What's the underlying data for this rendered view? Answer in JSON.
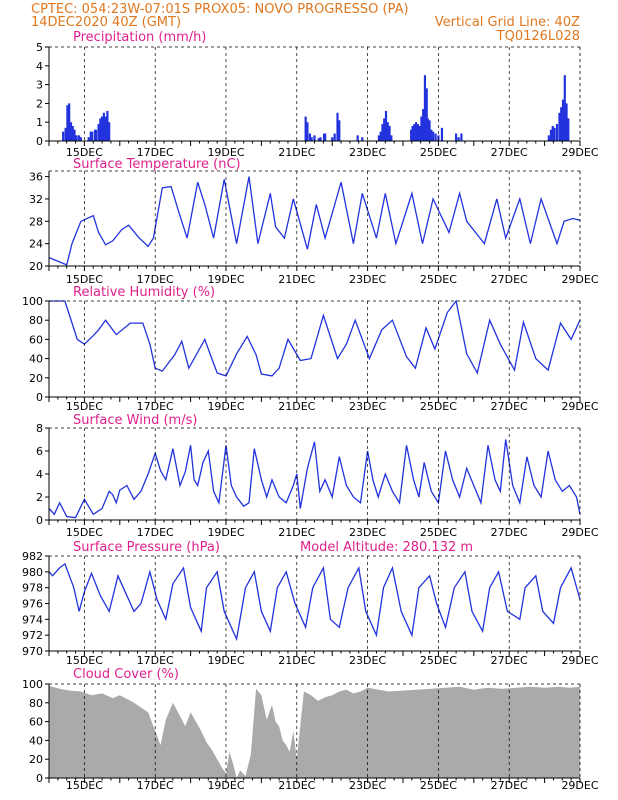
{
  "header": {
    "line1_left": "CPTEC:   054:23W-07:01S    PROX05: NOVO PROGRESSO (PA)",
    "line2_left": "14DEC2020 40Z (GMT)",
    "line2_right": "Vertical Grid Line: 40Z",
    "line3_right": "TQ0126L028",
    "color": "#e07820"
  },
  "colors": {
    "title": "#e0208c",
    "series": "#2233dd",
    "cloud": "#aaaaaa",
    "grid": "#000000"
  },
  "x_axis": {
    "start_day": 14,
    "end_day": 29,
    "labels": [
      "15DEC",
      "17DEC",
      "19DEC",
      "21DEC",
      "23DEC",
      "25DEC",
      "27DEC",
      "29DEC"
    ],
    "label_days": [
      15,
      17,
      19,
      21,
      23,
      25,
      27,
      29
    ]
  },
  "chart_data": [
    {
      "id": "precip",
      "type": "bar",
      "title": "Precipitation (mm/h)",
      "ylim": [
        0,
        5
      ],
      "yticks": [
        0,
        1,
        2,
        3,
        4,
        5
      ],
      "x": [
        14.4,
        14.47,
        14.52,
        14.57,
        14.62,
        14.67,
        14.72,
        14.78,
        14.85,
        14.9,
        15.12,
        15.18,
        15.22,
        15.3,
        15.33,
        15.4,
        15.45,
        15.5,
        15.55,
        15.6,
        15.65,
        15.7,
        21.25,
        21.3,
        21.37,
        21.42,
        21.5,
        21.62,
        21.67,
        21.77,
        21.8,
        22.0,
        22.07,
        22.15,
        22.2,
        22.72,
        22.85,
        23.32,
        23.37,
        23.42,
        23.47,
        23.52,
        23.57,
        23.62,
        23.67,
        24.23,
        24.27,
        24.32,
        24.37,
        24.42,
        24.47,
        24.52,
        24.57,
        24.62,
        24.67,
        24.7,
        24.75,
        24.8,
        24.85,
        24.92,
        25.0,
        25.1,
        25.5,
        25.57,
        25.65,
        28.12,
        28.18,
        28.23,
        28.28,
        28.35,
        28.42,
        28.47,
        28.52,
        28.57,
        28.62,
        28.67
      ],
      "values": [
        0.5,
        0.7,
        1.9,
        2.0,
        1.0,
        0.8,
        0.6,
        0.3,
        0.3,
        0.2,
        0.2,
        0.5,
        0.5,
        0.6,
        0.6,
        0.9,
        1.2,
        1.3,
        1.5,
        1.3,
        1.6,
        1.0,
        1.3,
        1.0,
        0.4,
        0.2,
        0.3,
        0.15,
        0.2,
        0.4,
        0.4,
        0.2,
        0.4,
        1.5,
        1.1,
        0.3,
        0.2,
        0.3,
        0.5,
        0.9,
        1.2,
        1.6,
        1.0,
        0.8,
        0.3,
        0.6,
        0.8,
        0.9,
        1.0,
        0.9,
        0.8,
        1.3,
        1.7,
        3.5,
        2.8,
        1.2,
        1.1,
        0.6,
        0.5,
        0.4,
        0.3,
        0.7,
        0.4,
        0.2,
        0.4,
        0.3,
        0.6,
        0.8,
        0.7,
        0.9,
        1.5,
        1.8,
        2.2,
        3.5,
        2.0,
        1.2
      ]
    },
    {
      "id": "temp",
      "type": "line",
      "title": "Surface Temperature (nC)",
      "ylim": [
        20,
        37
      ],
      "yticks": [
        20,
        24,
        28,
        32,
        36
      ],
      "x": [
        14.0,
        14.5,
        14.65,
        14.9,
        15.25,
        15.4,
        15.6,
        15.8,
        16.05,
        16.25,
        16.55,
        16.8,
        16.95,
        17.2,
        17.45,
        17.65,
        17.9,
        18.2,
        18.4,
        18.65,
        18.95,
        19.3,
        19.65,
        19.9,
        20.25,
        20.4,
        20.65,
        20.9,
        21.3,
        21.55,
        21.8,
        22.25,
        22.6,
        22.85,
        23.25,
        23.5,
        23.8,
        24.25,
        24.55,
        24.85,
        25.3,
        25.6,
        25.8,
        26.3,
        26.65,
        26.9,
        27.3,
        27.6,
        27.9,
        28.35,
        28.55,
        28.8,
        29.0
      ],
      "values": [
        21.5,
        20.2,
        24.0,
        28.0,
        29.0,
        26.0,
        23.8,
        24.5,
        26.5,
        27.3,
        25.0,
        23.5,
        25.0,
        34.0,
        34.2,
        30.0,
        25.0,
        35.0,
        31.0,
        25.0,
        35.5,
        24.0,
        36.0,
        24.0,
        33.0,
        27.0,
        25.0,
        32.0,
        23.0,
        31.0,
        25.0,
        35.0,
        24.0,
        33.0,
        25.0,
        33.0,
        24.0,
        33.0,
        24.0,
        32.0,
        26.0,
        33.0,
        28.0,
        24.0,
        32.0,
        25.0,
        32.0,
        24.0,
        32.0,
        24.0,
        28.0,
        28.5,
        28.2
      ]
    },
    {
      "id": "rh",
      "type": "line",
      "title": "Relative Humidity (%)",
      "ylim": [
        0,
        100
      ],
      "yticks": [
        0,
        20,
        40,
        60,
        80,
        100
      ],
      "x": [
        14.0,
        14.45,
        14.8,
        15.0,
        15.25,
        15.4,
        15.6,
        15.9,
        16.3,
        16.65,
        16.85,
        17.0,
        17.2,
        17.55,
        17.75,
        17.95,
        18.4,
        18.6,
        18.75,
        19.0,
        19.3,
        19.6,
        19.85,
        20.0,
        20.3,
        20.5,
        20.75,
        21.1,
        21.4,
        21.75,
        22.15,
        22.4,
        22.65,
        23.05,
        23.4,
        23.7,
        24.1,
        24.35,
        24.65,
        24.9,
        25.25,
        25.5,
        25.8,
        26.1,
        26.45,
        26.75,
        27.15,
        27.4,
        27.75,
        28.1,
        28.45,
        28.75,
        29.0
      ],
      "values": [
        100,
        100,
        60,
        55,
        64,
        70,
        80,
        65,
        77,
        77,
        55,
        30,
        27,
        44,
        58,
        30,
        60,
        40,
        25,
        22,
        45,
        63,
        44,
        24,
        22,
        30,
        60,
        38,
        40,
        85,
        40,
        55,
        80,
        40,
        70,
        80,
        42,
        30,
        72,
        50,
        88,
        100,
        45,
        25,
        80,
        55,
        28,
        78,
        40,
        28,
        77,
        60,
        80
      ]
    },
    {
      "id": "wind",
      "type": "line",
      "title": "Surface Wind (m/s)",
      "ylim": [
        0,
        8
      ],
      "yticks": [
        0,
        2,
        4,
        6,
        8
      ],
      "x": [
        14.0,
        14.15,
        14.3,
        14.5,
        14.75,
        15.0,
        15.25,
        15.5,
        15.7,
        15.8,
        15.9,
        16.0,
        16.2,
        16.4,
        16.6,
        16.8,
        17.0,
        17.15,
        17.3,
        17.5,
        17.7,
        17.85,
        18.0,
        18.1,
        18.2,
        18.35,
        18.5,
        18.65,
        18.8,
        19.0,
        19.15,
        19.3,
        19.5,
        19.65,
        19.8,
        20.0,
        20.15,
        20.3,
        20.5,
        20.7,
        20.9,
        21.0,
        21.1,
        21.3,
        21.5,
        21.65,
        21.8,
        22.0,
        22.2,
        22.4,
        22.6,
        22.8,
        23.0,
        23.15,
        23.3,
        23.5,
        23.7,
        23.9,
        24.1,
        24.3,
        24.45,
        24.6,
        24.8,
        25.0,
        25.2,
        25.4,
        25.6,
        25.8,
        26.0,
        26.2,
        26.4,
        26.6,
        26.75,
        26.9,
        27.1,
        27.3,
        27.5,
        27.7,
        27.9,
        28.1,
        28.3,
        28.5,
        28.7,
        28.9,
        29.0
      ],
      "values": [
        1.0,
        0.5,
        1.5,
        0.3,
        0.2,
        1.8,
        0.5,
        1.0,
        2.5,
        2.2,
        1.5,
        2.6,
        3.0,
        1.8,
        2.5,
        4.0,
        5.8,
        4.3,
        3.5,
        6.2,
        3.0,
        4.2,
        6.5,
        3.5,
        3.0,
        5.0,
        6.0,
        2.5,
        1.5,
        6.5,
        3.0,
        2.0,
        1.2,
        1.5,
        6.2,
        3.5,
        2.0,
        3.5,
        2.0,
        1.5,
        3.0,
        4.0,
        1.0,
        4.5,
        6.8,
        2.5,
        3.5,
        2.0,
        5.5,
        3.0,
        2.0,
        1.5,
        6.0,
        3.5,
        2.0,
        4.0,
        2.5,
        1.5,
        6.5,
        3.5,
        2.0,
        5.0,
        2.5,
        1.5,
        6.0,
        3.5,
        2.0,
        4.5,
        3.0,
        1.5,
        6.5,
        3.5,
        2.5,
        7.0,
        3.0,
        1.5,
        5.5,
        3.0,
        2.0,
        6.0,
        3.5,
        2.5,
        3.0,
        2.0,
        0.5
      ]
    },
    {
      "id": "pressure",
      "type": "line",
      "title": "Surface Pressure (hPa)",
      "subtitle": "Model Altitude: 280.132 m",
      "ylim": [
        970,
        982
      ],
      "yticks": [
        970,
        972,
        974,
        976,
        978,
        980,
        982
      ],
      "x": [
        14.0,
        14.1,
        14.3,
        14.45,
        14.7,
        14.85,
        15.0,
        15.2,
        15.45,
        15.7,
        15.95,
        16.1,
        16.4,
        16.6,
        16.85,
        17.05,
        17.3,
        17.5,
        17.8,
        18.0,
        18.3,
        18.45,
        18.75,
        18.95,
        19.3,
        19.55,
        19.8,
        20.0,
        20.25,
        20.45,
        20.7,
        20.95,
        21.25,
        21.45,
        21.75,
        21.95,
        22.2,
        22.45,
        22.75,
        22.95,
        23.25,
        23.45,
        23.7,
        23.95,
        24.25,
        24.45,
        24.75,
        24.95,
        25.2,
        25.45,
        25.75,
        25.95,
        26.25,
        26.45,
        26.7,
        26.95,
        27.3,
        27.45,
        27.75,
        27.95,
        28.25,
        28.45,
        28.75,
        29.0
      ],
      "values": [
        980.0,
        979.5,
        980.5,
        981.0,
        978.0,
        975.0,
        977.5,
        979.8,
        977.0,
        975.0,
        979.5,
        978.0,
        975.0,
        976.0,
        980.0,
        976.5,
        974.0,
        978.5,
        980.5,
        975.5,
        972.5,
        978.0,
        980.0,
        975.0,
        971.5,
        978.0,
        980.0,
        975.0,
        972.5,
        978.0,
        980.0,
        976.0,
        973.0,
        978.0,
        980.5,
        974.0,
        973.0,
        978.0,
        980.5,
        975.0,
        972.0,
        978.0,
        980.5,
        975.0,
        972.0,
        978.0,
        979.5,
        976.0,
        973.0,
        978.0,
        980.0,
        975.0,
        972.5,
        978.0,
        980.0,
        975.0,
        974.0,
        978.0,
        979.5,
        975.0,
        973.5,
        978.0,
        980.5,
        976.5
      ]
    },
    {
      "id": "cloud",
      "type": "area",
      "title": "Cloud Cover (%)",
      "ylim": [
        0,
        100
      ],
      "yticks": [
        0,
        20,
        40,
        60,
        80,
        100
      ],
      "x": [
        14.0,
        14.3,
        14.6,
        14.9,
        15.2,
        15.5,
        15.8,
        16.0,
        16.2,
        16.4,
        16.6,
        16.8,
        17.0,
        17.15,
        17.3,
        17.5,
        17.7,
        17.85,
        18.0,
        18.15,
        18.3,
        18.45,
        18.6,
        18.75,
        18.9,
        19.0,
        19.1,
        19.2,
        19.3,
        19.4,
        19.55,
        19.7,
        19.85,
        20.0,
        20.15,
        20.3,
        20.4,
        20.5,
        20.6,
        20.7,
        20.8,
        20.9,
        21.0,
        21.2,
        21.4,
        21.6,
        21.8,
        22.0,
        22.2,
        22.4,
        22.6,
        22.8,
        23.0,
        23.3,
        23.6,
        24.0,
        24.4,
        24.8,
        25.2,
        25.6,
        26.0,
        26.4,
        26.8,
        27.2,
        27.6,
        28.0,
        28.4,
        28.7,
        29.0
      ],
      "values": [
        98,
        95,
        93,
        92,
        88,
        90,
        85,
        88,
        84,
        80,
        75,
        70,
        50,
        35,
        62,
        80,
        66,
        55,
        70,
        60,
        50,
        38,
        30,
        20,
        10,
        5,
        28,
        15,
        0,
        8,
        2,
        25,
        95,
        88,
        62,
        78,
        60,
        55,
        40,
        35,
        28,
        50,
        20,
        92,
        88,
        82,
        86,
        88,
        92,
        94,
        90,
        92,
        96,
        94,
        92,
        93,
        94,
        95,
        96,
        97,
        94,
        96,
        95,
        96,
        97,
        96,
        97,
        96,
        97
      ]
    }
  ]
}
